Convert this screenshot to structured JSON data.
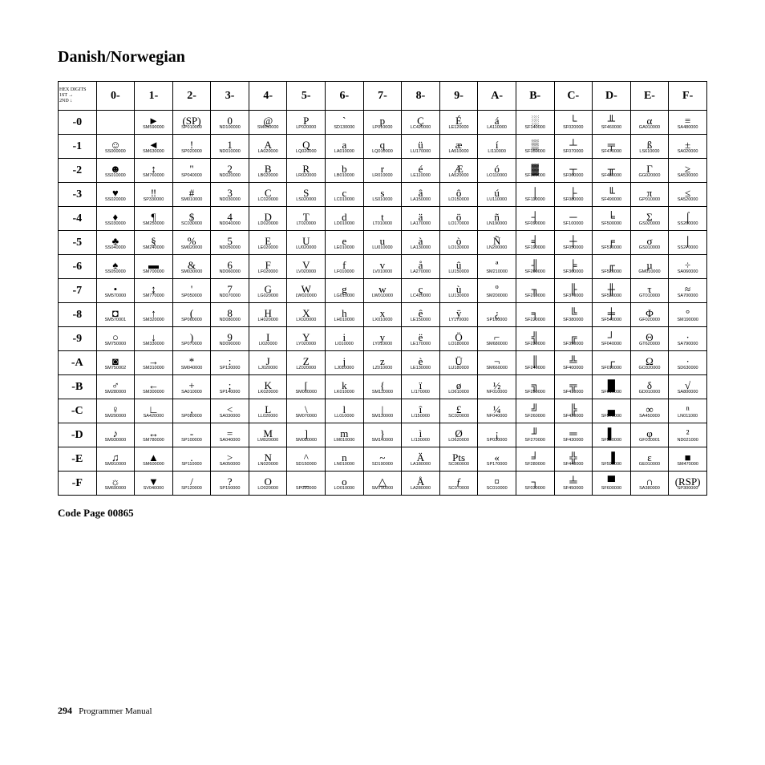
{
  "title": "Danish/Norwegian",
  "caption": "Code Page 00865",
  "page_number": "294",
  "footer_text": "Programmer Manual",
  "corner": {
    "l1": "HEX",
    "l2": "DIGITS",
    "l3": "1ST →",
    "l4": "2ND ↓"
  },
  "col_headers": [
    "0-",
    "1-",
    "2-",
    "3-",
    "4-",
    "5-",
    "6-",
    "7-",
    "8-",
    "9-",
    "A-",
    "B-",
    "C-",
    "D-",
    "E-",
    "F-"
  ],
  "row_headers": [
    "-0",
    "-1",
    "-2",
    "-3",
    "-4",
    "-5",
    "-6",
    "-7",
    "-8",
    "-9",
    "-A",
    "-B",
    "-C",
    "-D",
    "-E",
    "-F"
  ],
  "cells": [
    [
      [
        "",
        ""
      ],
      [
        "►",
        "SM590000"
      ],
      [
        "(SP)",
        "SP010000"
      ],
      [
        "0",
        "ND100000"
      ],
      [
        "@",
        "SM050000"
      ],
      [
        "P",
        "LP020000"
      ],
      [
        "`",
        "SD130000"
      ],
      [
        "p",
        "LP010000"
      ],
      [
        "Ç",
        "LC420000"
      ],
      [
        "É",
        "LE120000"
      ],
      [
        "á",
        "LA110000"
      ],
      [
        "░",
        "SF140000"
      ],
      [
        "└",
        "SF020000"
      ],
      [
        "╨",
        "SF460000"
      ],
      [
        "α",
        "GA010000"
      ],
      [
        "≡",
        "SA480000"
      ]
    ],
    [
      [
        "☺",
        "SS000000"
      ],
      [
        "◄",
        "SM630000"
      ],
      [
        "!",
        "SP020000"
      ],
      [
        "1",
        "ND010000"
      ],
      [
        "A",
        "LA020000"
      ],
      [
        "Q",
        "LQ020000"
      ],
      [
        "a",
        "LA010000"
      ],
      [
        "q",
        "LQ010000"
      ],
      [
        "ü",
        "LU170000"
      ],
      [
        "æ",
        "LA510000"
      ],
      [
        "í",
        "LI110000"
      ],
      [
        "▒",
        "SF150000"
      ],
      [
        "┴",
        "SF070000"
      ],
      [
        "╤",
        "SF470000"
      ],
      [
        "ß",
        "LS610000"
      ],
      [
        "±",
        "SA020000"
      ]
    ],
    [
      [
        "☻",
        "SS010000"
      ],
      [
        "↕",
        "SM760000"
      ],
      [
        "\"",
        "SP040000"
      ],
      [
        "2",
        "ND020000"
      ],
      [
        "B",
        "LB020000"
      ],
      [
        "R",
        "LR020000"
      ],
      [
        "b",
        "LB010000"
      ],
      [
        "r",
        "LR010000"
      ],
      [
        "é",
        "LE110000"
      ],
      [
        "Æ",
        "LA520000"
      ],
      [
        "ó",
        "LO110000"
      ],
      [
        "▓",
        "SF160000"
      ],
      [
        "┬",
        "SF060000"
      ],
      [
        "╥",
        "SF480000"
      ],
      [
        "Γ",
        "GG020000"
      ],
      [
        "≥",
        "SA530000"
      ]
    ],
    [
      [
        "♥",
        "SS020000"
      ],
      [
        "‼",
        "SP330000"
      ],
      [
        "#",
        "SM010000"
      ],
      [
        "3",
        "ND030000"
      ],
      [
        "C",
        "LC020000"
      ],
      [
        "S",
        "LS020000"
      ],
      [
        "c",
        "LC010000"
      ],
      [
        "s",
        "LS010000"
      ],
      [
        "â",
        "LA150000"
      ],
      [
        "ô",
        "LO150000"
      ],
      [
        "ú",
        "LU110000"
      ],
      [
        "│",
        "SF110000"
      ],
      [
        "├",
        "SF080000"
      ],
      [
        "╙",
        "SF490000"
      ],
      [
        "π",
        "GP010000"
      ],
      [
        "≤",
        "SA520000"
      ]
    ],
    [
      [
        "♦",
        "SS030000"
      ],
      [
        "¶",
        "SM250000"
      ],
      [
        "$",
        "SC030000"
      ],
      [
        "4",
        "ND040000"
      ],
      [
        "D",
        "LD020000"
      ],
      [
        "T",
        "LT020000"
      ],
      [
        "d",
        "LD010000"
      ],
      [
        "t",
        "LT010000"
      ],
      [
        "ä",
        "LA170000"
      ],
      [
        "ö",
        "LO170000"
      ],
      [
        "ñ",
        "LN190000"
      ],
      [
        "┤",
        "SF090000"
      ],
      [
        "─",
        "SF100000"
      ],
      [
        "╘",
        "SF500000"
      ],
      [
        "Σ",
        "GS020000"
      ],
      [
        "⌠",
        "SS260000"
      ]
    ],
    [
      [
        "♣",
        "SS040000"
      ],
      [
        "§",
        "SM240000"
      ],
      [
        "%",
        "SM020000"
      ],
      [
        "5",
        "ND050000"
      ],
      [
        "E",
        "LE020000"
      ],
      [
        "U",
        "LU020000"
      ],
      [
        "e",
        "LE010000"
      ],
      [
        "u",
        "LU010000"
      ],
      [
        "à",
        "LA130000"
      ],
      [
        "ò",
        "LO130000"
      ],
      [
        "Ñ",
        "LN200000"
      ],
      [
        "╡",
        "SF190000"
      ],
      [
        "┼",
        "SF050000"
      ],
      [
        "╒",
        "SF510000"
      ],
      [
        "σ",
        "GS010000"
      ],
      [
        "⌡",
        "SS270000"
      ]
    ],
    [
      [
        "♠",
        "SS050000"
      ],
      [
        "▬",
        "SM700000"
      ],
      [
        "&",
        "SM030000"
      ],
      [
        "6",
        "ND060000"
      ],
      [
        "F",
        "LF020000"
      ],
      [
        "V",
        "LV020000"
      ],
      [
        "f",
        "LF010000"
      ],
      [
        "v",
        "LV010000"
      ],
      [
        "å",
        "LA270000"
      ],
      [
        "û",
        "LU150000"
      ],
      [
        "ª",
        "SM210000"
      ],
      [
        "╢",
        "SF200000"
      ],
      [
        "╞",
        "SF360000"
      ],
      [
        "╓",
        "SF520000"
      ],
      [
        "µ",
        "GM010000"
      ],
      [
        "÷",
        "SA060000"
      ]
    ],
    [
      [
        "•",
        "SM570000"
      ],
      [
        "↨",
        "SM770000"
      ],
      [
        "'",
        "SP050000"
      ],
      [
        "7",
        "ND070000"
      ],
      [
        "G",
        "LG020000"
      ],
      [
        "W",
        "LW020000"
      ],
      [
        "g",
        "LG010000"
      ],
      [
        "w",
        "LW010000"
      ],
      [
        "ç",
        "LC410000"
      ],
      [
        "ù",
        "LU130000"
      ],
      [
        "º",
        "SM200000"
      ],
      [
        "╖",
        "SF210000"
      ],
      [
        "╟",
        "SF370000"
      ],
      [
        "╫",
        "SF530000"
      ],
      [
        "τ",
        "GT010000"
      ],
      [
        "≈",
        "SA700000"
      ]
    ],
    [
      [
        "◘",
        "SM570001"
      ],
      [
        "↑",
        "SM320000"
      ],
      [
        "(",
        "SP060000"
      ],
      [
        "8",
        "ND080000"
      ],
      [
        "H",
        "LH020000"
      ],
      [
        "X",
        "LX020000"
      ],
      [
        "h",
        "LH010000"
      ],
      [
        "x",
        "LX010000"
      ],
      [
        "ê",
        "LE150000"
      ],
      [
        "ÿ",
        "LY170000"
      ],
      [
        "¿",
        "SP160000"
      ],
      [
        "╕",
        "SF220000"
      ],
      [
        "╚",
        "SF380000"
      ],
      [
        "╪",
        "SF540000"
      ],
      [
        "Φ",
        "GF020000"
      ],
      [
        "°",
        "SM190000"
      ]
    ],
    [
      [
        "○",
        "SM750000"
      ],
      [
        "↓",
        "SM330000"
      ],
      [
        ")",
        "SP070000"
      ],
      [
        "9",
        "ND090000"
      ],
      [
        "I",
        "LI020000"
      ],
      [
        "Y",
        "LY020000"
      ],
      [
        "i",
        "LI010000"
      ],
      [
        "y",
        "LY010000"
      ],
      [
        "ë",
        "LE170000"
      ],
      [
        "Ö",
        "LO180000"
      ],
      [
        "⌐",
        "SM680000"
      ],
      [
        "╣",
        "SF230000"
      ],
      [
        "╔",
        "SF390000"
      ],
      [
        "┘",
        "SF040000"
      ],
      [
        "Θ",
        "GT620000"
      ],
      [
        "∙",
        "SA790000"
      ]
    ],
    [
      [
        "◙",
        "SM750002"
      ],
      [
        "→",
        "SM310000"
      ],
      [
        "*",
        "SM040000"
      ],
      [
        ":",
        "SP130000"
      ],
      [
        "J",
        "LJ020000"
      ],
      [
        "Z",
        "LZ020000"
      ],
      [
        "j",
        "LJ010000"
      ],
      [
        "z",
        "LZ010000"
      ],
      [
        "è",
        "LE130000"
      ],
      [
        "Ü",
        "LU180000"
      ],
      [
        "¬",
        "SM660000"
      ],
      [
        "║",
        "SF240000"
      ],
      [
        "╩",
        "SF400000"
      ],
      [
        "┌",
        "SF010000"
      ],
      [
        "Ω",
        "GO320000"
      ],
      [
        "·",
        "SD630000"
      ]
    ],
    [
      [
        "♂",
        "SM280000"
      ],
      [
        "←",
        "SM300000"
      ],
      [
        "+",
        "SA010000"
      ],
      [
        ";",
        "SP140000"
      ],
      [
        "K",
        "LK020000"
      ],
      [
        "[",
        "SM060000"
      ],
      [
        "k",
        "LK010000"
      ],
      [
        "{",
        "SM110000"
      ],
      [
        "ï",
        "LI170000"
      ],
      [
        "ø",
        "LO610000"
      ],
      [
        "½",
        "NF010000"
      ],
      [
        "╗",
        "SF250000"
      ],
      [
        "╦",
        "SF410000"
      ],
      [
        "█",
        "SF610000"
      ],
      [
        "δ",
        "GD010000"
      ],
      [
        "√",
        "SA800000"
      ]
    ],
    [
      [
        "♀",
        "SM290000"
      ],
      [
        "∟",
        "SA420000"
      ],
      [
        ",",
        "SP080000"
      ],
      [
        "<",
        "SA030000"
      ],
      [
        "L",
        "LL020000"
      ],
      [
        "\\",
        "SM070000"
      ],
      [
        "l",
        "LL010000"
      ],
      [
        "|",
        "SM130000"
      ],
      [
        "î",
        "LI150000"
      ],
      [
        "£",
        "SC020000"
      ],
      [
        "¼",
        "NF040000"
      ],
      [
        "╝",
        "SF260000"
      ],
      [
        "╠",
        "SF420000"
      ],
      [
        "▄",
        "SF570000"
      ],
      [
        "∞",
        "SA450000"
      ],
      [
        "ⁿ",
        "LN011000"
      ]
    ],
    [
      [
        "♪",
        "SM930000"
      ],
      [
        "↔",
        "SM780000"
      ],
      [
        "-",
        "SP100000"
      ],
      [
        "=",
        "SA040000"
      ],
      [
        "M",
        "LM020000"
      ],
      [
        "]",
        "SM080000"
      ],
      [
        "m",
        "LM010000"
      ],
      [
        "}",
        "SM140000"
      ],
      [
        "ì",
        "LI130000"
      ],
      [
        "Ø",
        "LO620000"
      ],
      [
        "¡",
        "SP030000"
      ],
      [
        "╜",
        "SF270000"
      ],
      [
        "═",
        "SF430000"
      ],
      [
        "▌",
        "SF580000"
      ],
      [
        "φ",
        "GF010001"
      ],
      [
        "²",
        "ND021000"
      ]
    ],
    [
      [
        "♫",
        "SM910000"
      ],
      [
        "▲",
        "SM600000"
      ],
      [
        ".",
        "SP110000"
      ],
      [
        ">",
        "SA050000"
      ],
      [
        "N",
        "LN020000"
      ],
      [
        "^",
        "SD150000"
      ],
      [
        "n",
        "LN010000"
      ],
      [
        "~",
        "SD190000"
      ],
      [
        "Ä",
        "LA180000"
      ],
      [
        "Pts",
        "SC060000"
      ],
      [
        "«",
        "SP170000"
      ],
      [
        "╛",
        "SF280000"
      ],
      [
        "╬",
        "SF440000"
      ],
      [
        "▐",
        "SF590000"
      ],
      [
        "ε",
        "GE010000"
      ],
      [
        "■",
        "SM470000"
      ]
    ],
    [
      [
        "☼",
        "SM690000"
      ],
      [
        "▼",
        "SV040000"
      ],
      [
        "/",
        "SP120000"
      ],
      [
        "?",
        "SP150000"
      ],
      [
        "O",
        "LO020000"
      ],
      [
        "_",
        "SP090000"
      ],
      [
        "o",
        "LO010000"
      ],
      [
        "△",
        "SM790000"
      ],
      [
        "Å",
        "LA280000"
      ],
      [
        "ƒ",
        "SC070000"
      ],
      [
        "¤",
        "SC010000"
      ],
      [
        "┐",
        "SF030000"
      ],
      [
        "╧",
        "SF450000"
      ],
      [
        "▀",
        "SF600000"
      ],
      [
        "∩",
        "SA380000"
      ],
      [
        "(RSP)",
        "SP300000"
      ]
    ]
  ]
}
